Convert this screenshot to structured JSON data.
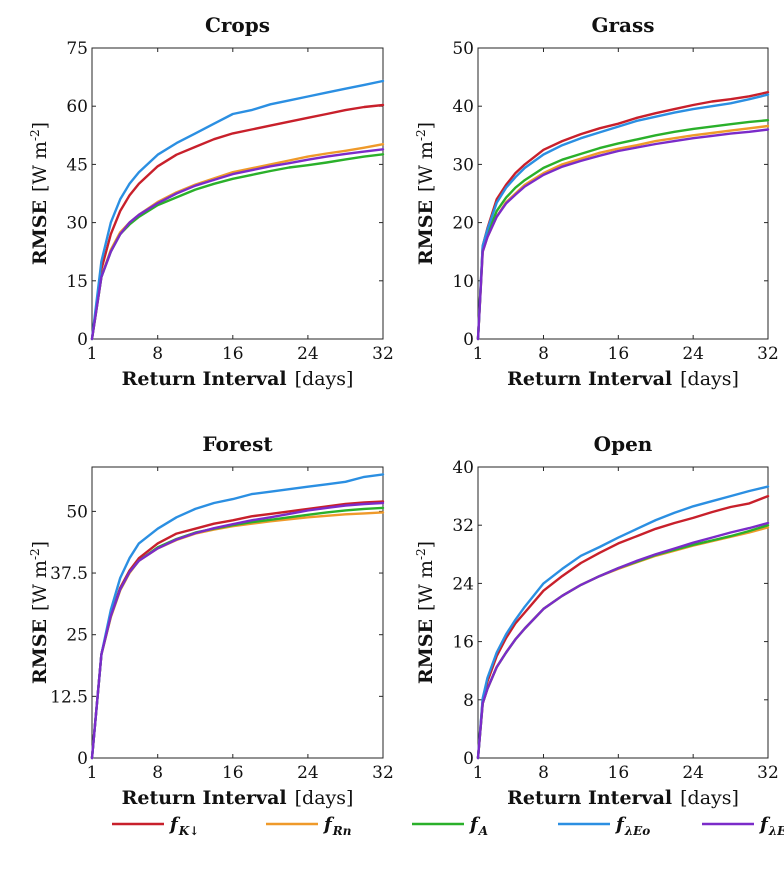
{
  "colors": {
    "fK": "#c8202b",
    "fRn": "#ef9a2a",
    "fA": "#2ab02a",
    "fLEo": "#2b8fe2",
    "fLEeq": "#7b2bc9"
  },
  "legend": [
    {
      "key": "fK",
      "main": "f",
      "sub": "K↓"
    },
    {
      "key": "fRn",
      "main": "f",
      "sub": "Rn"
    },
    {
      "key": "fA",
      "main": "f",
      "sub": "A"
    },
    {
      "key": "fLEo",
      "main": "f",
      "sub": "λEo"
    },
    {
      "key": "fLEeq",
      "main": "f",
      "sub": "λEeq"
    }
  ],
  "chart_data": [
    {
      "type": "line",
      "title": "Crops",
      "xlabel_bold": "Return Interval",
      "xlabel_unit": "[days]",
      "ylabel_bold": "RMSE",
      "ylabel_unit": "[W m-2]",
      "xlim": [
        1,
        32
      ],
      "ylim": [
        0,
        75
      ],
      "xticks": [
        1,
        8,
        16,
        24,
        32
      ],
      "yticks": [
        0,
        15,
        30,
        45,
        60,
        75
      ],
      "ytick_labels": [
        "0",
        "15",
        "30",
        "45",
        "60",
        "75"
      ],
      "x": [
        1,
        2,
        3,
        4,
        5,
        6,
        8,
        10,
        12,
        14,
        16,
        18,
        20,
        22,
        24,
        26,
        28,
        30,
        32
      ],
      "series": [
        {
          "key": "fK",
          "values": [
            0,
            18,
            27,
            33,
            37,
            40,
            44.5,
            47.5,
            49.5,
            51.5,
            53,
            54,
            55,
            56,
            57,
            58,
            59,
            59.8,
            60.3
          ]
        },
        {
          "key": "fRn",
          "values": [
            0,
            16,
            23,
            27.5,
            30,
            32,
            35.3,
            37.8,
            39.8,
            41.4,
            43,
            44,
            45,
            46,
            47,
            47.8,
            48.5,
            49.3,
            50.2
          ]
        },
        {
          "key": "fA",
          "values": [
            0,
            16,
            22.5,
            27,
            29.5,
            31.5,
            34.5,
            36.5,
            38.5,
            40,
            41.3,
            42.3,
            43.3,
            44.2,
            44.8,
            45.5,
            46.3,
            47,
            47.6
          ]
        },
        {
          "key": "fLEo",
          "values": [
            0,
            20,
            30,
            36,
            40,
            43,
            47.5,
            50.5,
            53,
            55.5,
            58,
            59,
            60.5,
            61.5,
            62.5,
            63.5,
            64.5,
            65.5,
            66.5
          ]
        },
        {
          "key": "fLEeq",
          "values": [
            0,
            16,
            22.5,
            27,
            30,
            32,
            35,
            37.5,
            39.5,
            41,
            42.5,
            43.5,
            44.5,
            45.3,
            46.2,
            47,
            47.7,
            48.3,
            48.9
          ]
        }
      ]
    },
    {
      "type": "line",
      "title": "Grass",
      "xlabel_bold": "Return Interval",
      "xlabel_unit": "[days]",
      "ylabel_bold": "RMSE",
      "ylabel_unit": "[W m-2]",
      "xlim": [
        1,
        32
      ],
      "ylim": [
        0,
        50
      ],
      "xticks": [
        1,
        8,
        16,
        24,
        32
      ],
      "yticks": [
        0,
        10,
        20,
        30,
        40,
        50
      ],
      "ytick_labels": [
        "0",
        "10",
        "20",
        "30",
        "40",
        "50"
      ],
      "x": [
        1,
        1.5,
        2,
        3,
        4,
        5,
        6,
        8,
        10,
        12,
        14,
        16,
        18,
        20,
        22,
        24,
        26,
        28,
        30,
        32
      ],
      "series": [
        {
          "key": "fK",
          "values": [
            0,
            16,
            19,
            24,
            26.5,
            28.5,
            30,
            32.5,
            34,
            35.2,
            36.2,
            37,
            38,
            38.8,
            39.5,
            40.2,
            40.8,
            41.2,
            41.7,
            42.4
          ]
        },
        {
          "key": "fRn",
          "values": [
            0,
            15,
            17.5,
            21,
            23.5,
            25,
            26.5,
            28.5,
            30,
            31,
            32,
            32.7,
            33.3,
            34,
            34.5,
            35,
            35.4,
            35.8,
            36.2,
            36.6
          ]
        },
        {
          "key": "fA",
          "values": [
            0,
            15.5,
            18,
            22,
            24.3,
            26,
            27.3,
            29.4,
            30.8,
            31.8,
            32.8,
            33.6,
            34.3,
            35,
            35.6,
            36.1,
            36.5,
            36.9,
            37.3,
            37.6
          ]
        },
        {
          "key": "fLEo",
          "values": [
            0,
            16,
            18.8,
            23.4,
            26,
            27.8,
            29.4,
            31.7,
            33.3,
            34.5,
            35.5,
            36.5,
            37.5,
            38.2,
            38.9,
            39.5,
            40,
            40.5,
            41.2,
            42
          ]
        },
        {
          "key": "fLEeq",
          "values": [
            0,
            15,
            17.5,
            21,
            23.3,
            24.8,
            26.2,
            28.2,
            29.6,
            30.6,
            31.5,
            32.3,
            32.9,
            33.5,
            34,
            34.5,
            34.9,
            35.3,
            35.6,
            36
          ]
        }
      ]
    },
    {
      "type": "line",
      "title": "Forest",
      "xlabel_bold": "Return Interval",
      "xlabel_unit": "[days]",
      "ylabel_bold": "RMSE",
      "ylabel_unit": "[W m-2]",
      "xlim": [
        1,
        32
      ],
      "ylim": [
        0,
        59
      ],
      "xticks": [
        1,
        8,
        16,
        24,
        32
      ],
      "yticks": [
        0,
        12.5,
        25,
        37.5,
        50
      ],
      "ytick_labels": [
        "0",
        "12.5",
        "25",
        "37.5",
        "50"
      ],
      "x": [
        1,
        2,
        3,
        4,
        5,
        6,
        8,
        10,
        12,
        14,
        16,
        18,
        20,
        22,
        24,
        26,
        28,
        30,
        32
      ],
      "series": [
        {
          "key": "fK",
          "values": [
            0,
            21,
            29,
            34.5,
            38,
            40.5,
            43.5,
            45.5,
            46.5,
            47.5,
            48.2,
            49,
            49.5,
            50,
            50.5,
            51,
            51.5,
            51.8,
            52
          ]
        },
        {
          "key": "fRn",
          "values": [
            0,
            21,
            28.5,
            34,
            37.5,
            40,
            42.5,
            44.2,
            45.5,
            46.3,
            47,
            47.5,
            48,
            48.4,
            48.8,
            49.1,
            49.4,
            49.6,
            49.8
          ]
        },
        {
          "key": "fA",
          "values": [
            0,
            21,
            28.8,
            34.2,
            37.7,
            40,
            42.7,
            44.4,
            45.7,
            46.5,
            47.2,
            47.8,
            48.3,
            48.8,
            49.3,
            49.8,
            50.2,
            50.5,
            50.7
          ]
        },
        {
          "key": "fLEo",
          "values": [
            0,
            21,
            30,
            36.5,
            40.5,
            43.5,
            46.5,
            48.8,
            50.5,
            51.7,
            52.5,
            53.5,
            54,
            54.5,
            55,
            55.5,
            56,
            57,
            57.5
          ]
        },
        {
          "key": "fLEeq",
          "values": [
            0,
            21,
            28.8,
            34.2,
            37.7,
            40,
            42.5,
            44.3,
            45.6,
            46.6,
            47.4,
            48.2,
            48.8,
            49.5,
            50.2,
            50.7,
            51.2,
            51.5,
            51.7
          ]
        }
      ]
    },
    {
      "type": "line",
      "title": "Open",
      "xlabel_bold": "Return Interval",
      "xlabel_unit": "[days]",
      "ylabel_bold": "RMSE",
      "ylabel_unit": "[W m-2]",
      "xlim": [
        1,
        32
      ],
      "ylim": [
        0,
        40
      ],
      "xticks": [
        1,
        8,
        16,
        24,
        32
      ],
      "yticks": [
        0,
        8,
        16,
        24,
        32,
        40
      ],
      "ytick_labels": [
        "0",
        "8",
        "16",
        "24",
        "32",
        "40"
      ],
      "x": [
        1,
        1.5,
        2,
        3,
        4,
        5,
        6,
        8,
        10,
        12,
        14,
        16,
        18,
        20,
        22,
        24,
        26,
        28,
        30,
        32
      ],
      "series": [
        {
          "key": "fK",
          "values": [
            0,
            8,
            10.5,
            14,
            16.5,
            18.5,
            20,
            23,
            25,
            26.8,
            28.2,
            29.5,
            30.5,
            31.5,
            32.3,
            33,
            33.8,
            34.5,
            35,
            36
          ]
        },
        {
          "key": "fRn",
          "values": [
            0,
            7.5,
            9.5,
            12.5,
            14.5,
            16.3,
            17.8,
            20.5,
            22.3,
            23.8,
            25,
            26,
            26.9,
            27.8,
            28.5,
            29.2,
            29.8,
            30.4,
            31,
            31.7
          ]
        },
        {
          "key": "fA",
          "values": [
            0,
            7.5,
            9.5,
            12.5,
            14.5,
            16.3,
            17.8,
            20.5,
            22.3,
            23.8,
            25,
            26.1,
            27,
            27.9,
            28.6,
            29.3,
            29.9,
            30.5,
            31.2,
            32
          ]
        },
        {
          "key": "fLEo",
          "values": [
            0,
            8.2,
            11,
            14.5,
            17,
            19,
            20.8,
            24,
            26,
            27.8,
            29,
            30.3,
            31.5,
            32.7,
            33.7,
            34.6,
            35.3,
            36,
            36.7,
            37.3
          ]
        },
        {
          "key": "fLEeq",
          "values": [
            0,
            7.5,
            9.5,
            12.5,
            14.5,
            16.3,
            17.8,
            20.5,
            22.3,
            23.8,
            25,
            26.1,
            27.1,
            28,
            28.8,
            29.6,
            30.3,
            31,
            31.6,
            32.3
          ]
        }
      ]
    }
  ]
}
